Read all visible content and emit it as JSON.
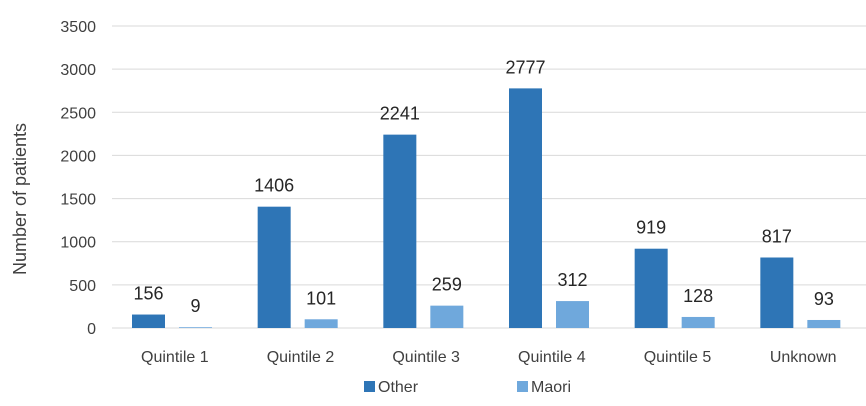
{
  "chart_data": {
    "type": "bar",
    "title": "",
    "xlabel": "",
    "ylabel": "Number of patients",
    "ylim": [
      0,
      3500
    ],
    "yticks": [
      0,
      500,
      1000,
      1500,
      2000,
      2500,
      3000,
      3500
    ],
    "grid": true,
    "legend_position": "bottom",
    "categories": [
      "Quintile 1",
      "Quintile 2",
      "Quintile 3",
      "Quintile 4",
      "Quintile 5",
      "Unknown"
    ],
    "series": [
      {
        "name": "Other",
        "color": "#2e75b6",
        "values": [
          156,
          1406,
          2241,
          2777,
          919,
          817
        ]
      },
      {
        "name": "Maori",
        "color": "#6fa8dc",
        "values": [
          9,
          101,
          259,
          312,
          128,
          93
        ]
      }
    ]
  }
}
